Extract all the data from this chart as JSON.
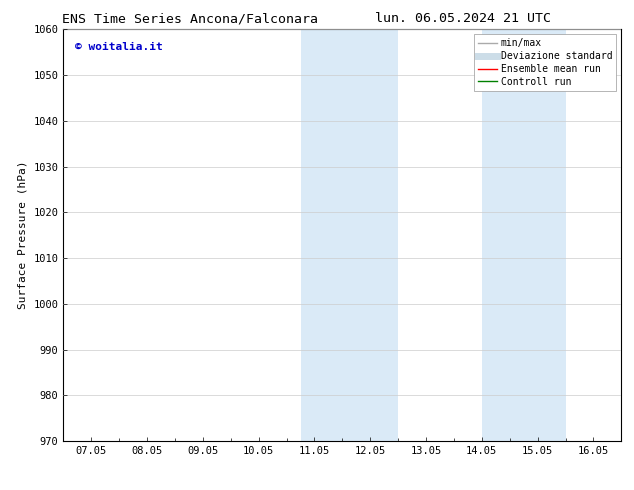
{
  "title_left": "ENS Time Series Ancona/Falconara",
  "title_right": "lun. 06.05.2024 21 UTC",
  "ylabel": "Surface Pressure (hPa)",
  "ylim": [
    970,
    1060
  ],
  "yticks": [
    970,
    980,
    990,
    1000,
    1010,
    1020,
    1030,
    1040,
    1050,
    1060
  ],
  "xtick_labels": [
    "07.05",
    "08.05",
    "09.05",
    "10.05",
    "11.05",
    "12.05",
    "13.05",
    "14.05",
    "15.05",
    "16.05"
  ],
  "xtick_positions": [
    0,
    1,
    2,
    3,
    4,
    5,
    6,
    7,
    8,
    9
  ],
  "xlim": [
    -0.5,
    9.5
  ],
  "shade_regions": [
    {
      "x_start": 3.75,
      "x_end": 4.5,
      "color": "#daeaf7"
    },
    {
      "x_start": 4.5,
      "x_end": 5.5,
      "color": "#daeaf7"
    },
    {
      "x_start": 7.0,
      "x_end": 7.75,
      "color": "#daeaf7"
    },
    {
      "x_start": 7.75,
      "x_end": 8.5,
      "color": "#daeaf7"
    }
  ],
  "watermark_text": "© woitalia.it",
  "watermark_color": "#0000cc",
  "legend_items": [
    {
      "label": "min/max",
      "color": "#aaaaaa",
      "lw": 1.0,
      "style": "solid"
    },
    {
      "label": "Deviazione standard",
      "color": "#ccdde8",
      "lw": 5,
      "style": "solid"
    },
    {
      "label": "Ensemble mean run",
      "color": "#ff0000",
      "lw": 1.0,
      "style": "solid"
    },
    {
      "label": "Controll run",
      "color": "#008000",
      "lw": 1.0,
      "style": "solid"
    }
  ],
  "bg_color": "#ffffff",
  "plot_bg_color": "#ffffff",
  "grid_color": "#cccccc",
  "title_fontsize": 9.5,
  "tick_fontsize": 7.5,
  "ylabel_fontsize": 8,
  "watermark_fontsize": 8,
  "legend_fontsize": 7
}
